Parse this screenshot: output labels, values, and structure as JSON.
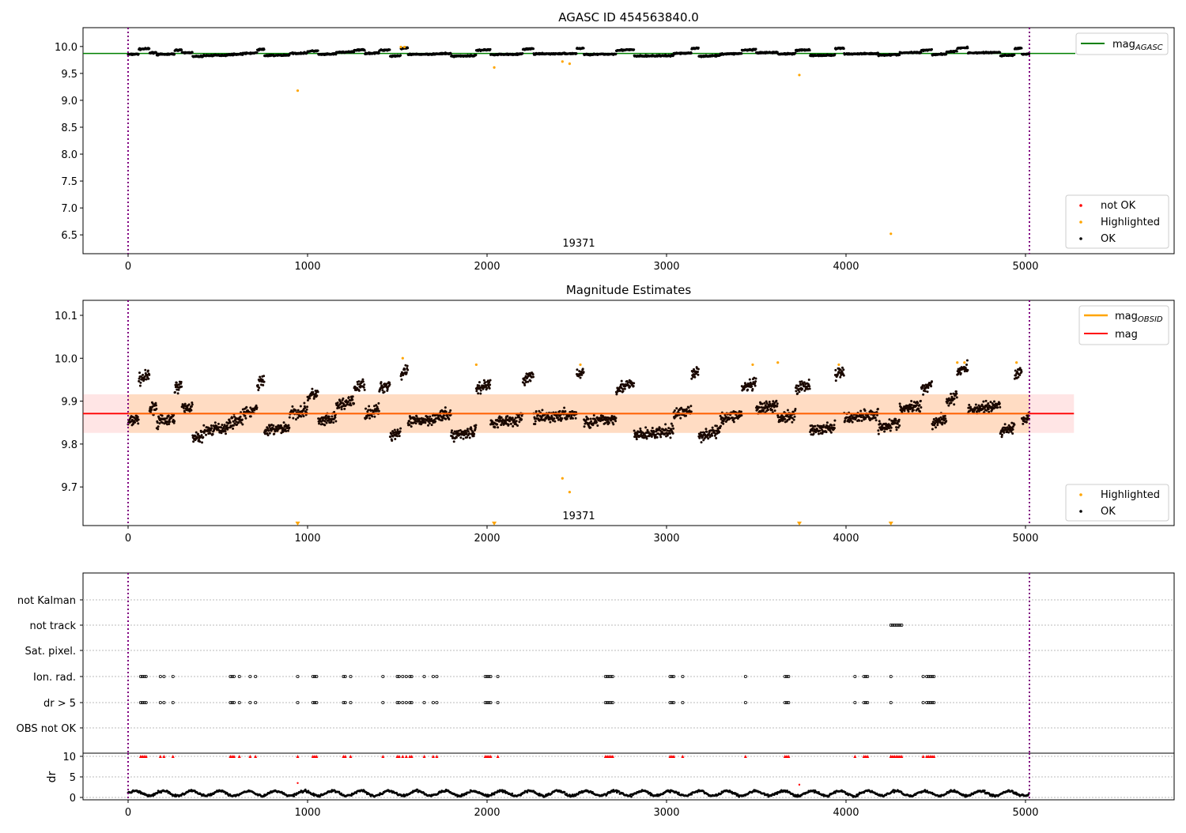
{
  "chart_data": [
    {
      "type": "scatter",
      "title": "AGASC ID 454563840.0",
      "xlim": [
        -250,
        5800
      ],
      "ylim": [
        6.15,
        10.35
      ],
      "xticks": [
        0,
        1000,
        2000,
        3000,
        4000,
        5000
      ],
      "yticks": [
        6.5,
        7.0,
        7.5,
        8.0,
        8.5,
        9.0,
        9.5,
        10.0
      ],
      "mag_agasc": 9.87,
      "obsid_label": "19371",
      "obsid_label_x": 2500,
      "obsid_bounds": [
        0,
        5022
      ],
      "legend_line": {
        "label": "mag",
        "sub": "AGASC",
        "color": "#008000"
      },
      "legend_points": [
        {
          "label": "not OK",
          "color": "#ff0000"
        },
        {
          "label": "Highlighted",
          "color": "#ffa500"
        },
        {
          "label": "OK",
          "color": "#000000"
        }
      ],
      "highlighted": [
        [
          945,
          9.18
        ],
        [
          1520,
          9.99
        ],
        [
          1540,
          9.99
        ],
        [
          2040,
          9.61
        ],
        [
          2420,
          9.72
        ],
        [
          2460,
          9.68
        ],
        [
          3740,
          9.47
        ],
        [
          4250,
          6.52
        ]
      ]
    },
    {
      "type": "scatter",
      "title": "Magnitude Estimates",
      "xlim": [
        -250,
        5800
      ],
      "ylim": [
        9.61,
        10.135
      ],
      "xticks": [
        0,
        1000,
        2000,
        3000,
        4000,
        5000
      ],
      "yticks": [
        9.7,
        9.8,
        9.9,
        10.0,
        10.1
      ],
      "mag": 9.871,
      "mag_band": [
        9.826,
        9.916
      ],
      "band_xlim": [
        -250,
        5270
      ],
      "obsid_label": "19371",
      "legend_lines": [
        {
          "label": "mag",
          "sub": "OBSID",
          "color": "#ffa500"
        },
        {
          "label": "mag",
          "sub": "",
          "color": "#ff0000"
        }
      ],
      "legend_points": [
        {
          "label": "Highlighted",
          "color": "#ffa500"
        },
        {
          "label": "OK",
          "color": "#000000"
        }
      ],
      "highlighted": [
        [
          1530,
          10.0
        ],
        [
          1940,
          9.985
        ],
        [
          2420,
          9.72
        ],
        [
          2460,
          9.688
        ],
        [
          2520,
          9.985
        ],
        [
          3480,
          9.985
        ],
        [
          3620,
          9.99
        ],
        [
          3960,
          9.985
        ],
        [
          4620,
          9.99
        ],
        [
          4660,
          9.99
        ],
        [
          4950,
          9.99
        ]
      ],
      "off_scale_markers": [
        945,
        2040,
        3740,
        4250
      ],
      "segments": [
        [
          0,
          60,
          9.85
        ],
        [
          60,
          120,
          9.95
        ],
        [
          120,
          160,
          9.88
        ],
        [
          160,
          260,
          9.85
        ],
        [
          260,
          300,
          9.93
        ],
        [
          300,
          360,
          9.88
        ],
        [
          360,
          420,
          9.81
        ],
        [
          420,
          560,
          9.83
        ],
        [
          560,
          640,
          9.85
        ],
        [
          640,
          720,
          9.87
        ],
        [
          720,
          760,
          9.94
        ],
        [
          760,
          900,
          9.83
        ],
        [
          900,
          1000,
          9.87
        ],
        [
          1000,
          1060,
          9.91
        ],
        [
          1060,
          1160,
          9.85
        ],
        [
          1160,
          1260,
          9.89
        ],
        [
          1260,
          1320,
          9.93
        ],
        [
          1320,
          1400,
          9.87
        ],
        [
          1400,
          1460,
          9.93
        ],
        [
          1460,
          1520,
          9.82
        ],
        [
          1520,
          1560,
          9.96
        ],
        [
          1560,
          1700,
          9.85
        ],
        [
          1700,
          1800,
          9.86
        ],
        [
          1800,
          1940,
          9.82
        ],
        [
          1940,
          2020,
          9.93
        ],
        [
          2020,
          2200,
          9.85
        ],
        [
          2200,
          2260,
          9.95
        ],
        [
          2260,
          2500,
          9.86
        ],
        [
          2500,
          2540,
          9.96
        ],
        [
          2540,
          2720,
          9.85
        ],
        [
          2720,
          2820,
          9.93
        ],
        [
          2820,
          3040,
          9.82
        ],
        [
          3040,
          3140,
          9.87
        ],
        [
          3140,
          3180,
          9.96
        ],
        [
          3180,
          3300,
          9.82
        ],
        [
          3300,
          3420,
          9.86
        ],
        [
          3420,
          3500,
          9.93
        ],
        [
          3500,
          3620,
          9.88
        ],
        [
          3620,
          3720,
          9.86
        ],
        [
          3720,
          3800,
          9.93
        ],
        [
          3800,
          3940,
          9.83
        ],
        [
          3940,
          3990,
          9.96
        ],
        [
          3990,
          4180,
          9.86
        ],
        [
          4180,
          4300,
          9.84
        ],
        [
          4300,
          4420,
          9.88
        ],
        [
          4420,
          4480,
          9.93
        ],
        [
          4480,
          4560,
          9.85
        ],
        [
          4560,
          4620,
          9.9
        ],
        [
          4620,
          4680,
          9.97
        ],
        [
          4680,
          4860,
          9.88
        ],
        [
          4860,
          4940,
          9.83
        ],
        [
          4940,
          4980,
          9.96
        ],
        [
          4980,
          5022,
          9.85
        ]
      ]
    },
    {
      "type": "scatter",
      "title": "",
      "xlim": [
        -250,
        5800
      ],
      "categories": [
        "not Kalman",
        "not track",
        "Sat. pixel.",
        "Ion. rad.",
        "dr > 5",
        "OBS not OK"
      ],
      "flags": {
        "not track": [
          4250,
          4260,
          4270,
          4280,
          4290,
          4300,
          4310
        ],
        "Ion. rad.": [
          70,
          80,
          90,
          100,
          180,
          200,
          250,
          570,
          580,
          590,
          620,
          680,
          710,
          945,
          1030,
          1040,
          1050,
          1200,
          1210,
          1240,
          1420,
          1500,
          1510,
          1530,
          1550,
          1570,
          1580,
          1650,
          1700,
          1720,
          1990,
          2000,
          2010,
          2020,
          2060,
          2660,
          2670,
          2680,
          2690,
          2700,
          3020,
          3030,
          3040,
          3090,
          3440,
          3660,
          3670,
          3680,
          4050,
          4100,
          4110,
          4120,
          4250,
          4430,
          4450,
          4460,
          4470,
          4480,
          4490
        ],
        "dr > 5": [
          70,
          80,
          90,
          100,
          180,
          200,
          250,
          570,
          580,
          590,
          620,
          680,
          710,
          945,
          1030,
          1040,
          1050,
          1200,
          1210,
          1240,
          1420,
          1500,
          1510,
          1530,
          1550,
          1570,
          1580,
          1650,
          1700,
          1720,
          1990,
          2000,
          2010,
          2020,
          2060,
          2660,
          2670,
          2680,
          2690,
          2700,
          3020,
          3030,
          3040,
          3090,
          3440,
          3660,
          3670,
          3680,
          4050,
          4100,
          4110,
          4120,
          4250,
          4430,
          4450,
          4460,
          4470,
          4480,
          4490
        ]
      },
      "ylabel": "dr",
      "dr_yticks": [
        0,
        5,
        10
      ],
      "dr_ylim": [
        -0.5,
        10.5
      ],
      "dr_outliers": [
        [
          945,
          3.5
        ],
        [
          3740,
          3.1
        ]
      ],
      "dr_level": 1.0
    }
  ]
}
